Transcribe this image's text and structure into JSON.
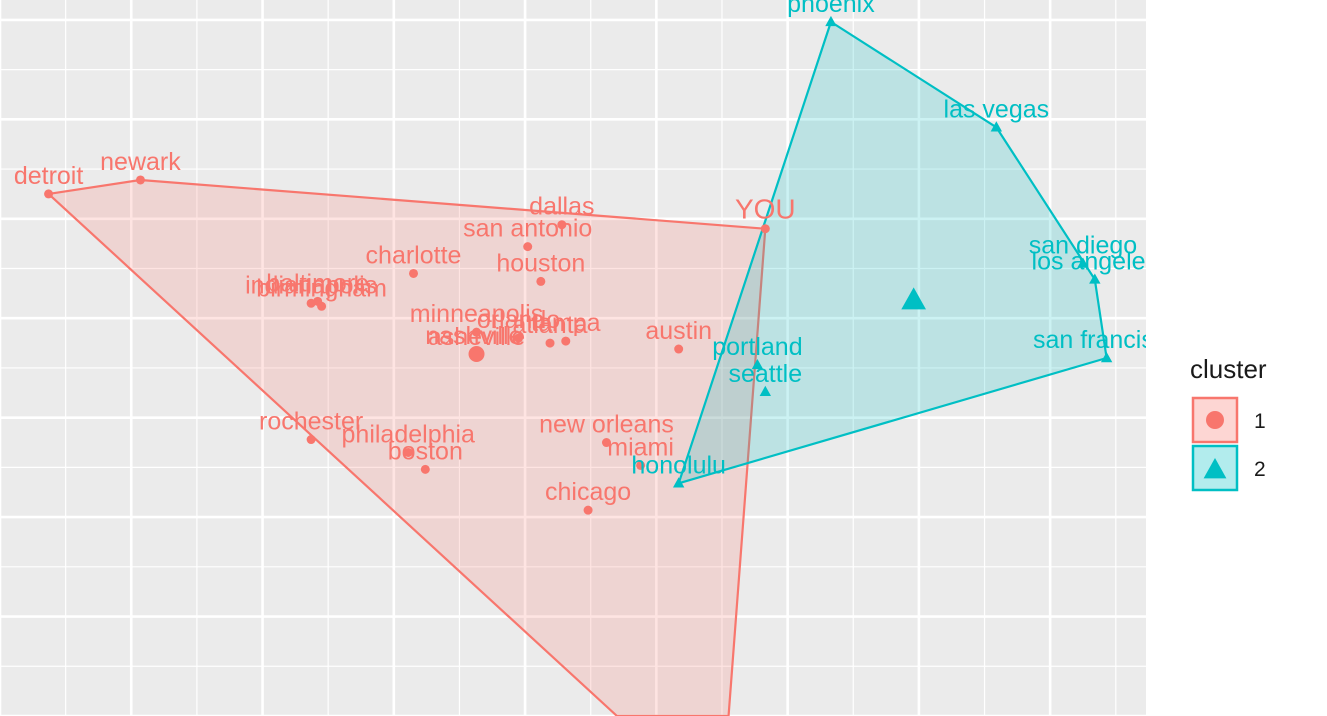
{
  "chart_data": {
    "type": "scatter",
    "title": "",
    "xlabel": "",
    "ylabel": "",
    "grid": true,
    "legend": {
      "title": "cluster",
      "position": "right",
      "entries": [
        {
          "label": "1",
          "shape": "circle",
          "color": "#F8766D"
        },
        {
          "label": "2",
          "shape": "triangle",
          "color": "#00BFC4"
        }
      ]
    },
    "colors": {
      "1": "#F8766D",
      "2": "#00BFC4"
    },
    "points": [
      {
        "label": "detroit",
        "x": 0.37,
        "y": 7.25,
        "cluster": 1
      },
      {
        "label": "newark",
        "x": 1.07,
        "y": 7.39,
        "cluster": 1
      },
      {
        "label": "YOU",
        "x": 5.83,
        "y": 6.9,
        "cluster": 1
      },
      {
        "label": "dallas",
        "x": 4.28,
        "y": 6.94,
        "cluster": 1
      },
      {
        "label": "san antonio",
        "x": 4.02,
        "y": 6.72,
        "cluster": 1
      },
      {
        "label": "houston",
        "x": 4.12,
        "y": 6.37,
        "cluster": 1
      },
      {
        "label": "indianapolis",
        "x": 2.37,
        "y": 6.15,
        "cluster": 1
      },
      {
        "label": "baltimore",
        "x": 2.42,
        "y": 6.17,
        "cluster": 1
      },
      {
        "label": "birmingham",
        "x": 2.45,
        "y": 6.12,
        "cluster": 1
      },
      {
        "label": "charlotte",
        "x": 3.15,
        "y": 6.45,
        "cluster": 1
      },
      {
        "label": "minneapolis",
        "x": 3.63,
        "y": 5.86,
        "cluster": 1
      },
      {
        "label": "orlando",
        "x": 3.95,
        "y": 5.8,
        "cluster": 1
      },
      {
        "label": "atlanta",
        "x": 4.19,
        "y": 5.75,
        "cluster": 1
      },
      {
        "label": "tampa",
        "x": 4.31,
        "y": 5.77,
        "cluster": 1
      },
      {
        "label": "nashville",
        "x": 3.61,
        "y": 5.64,
        "cluster": 1
      },
      {
        "label": "asheville",
        "x": 3.63,
        "y": 5.63,
        "cluster": 1
      },
      {
        "label": "austin",
        "x": 5.17,
        "y": 5.69,
        "cluster": 1
      },
      {
        "label": "rochester",
        "x": 2.37,
        "y": 4.78,
        "cluster": 1
      },
      {
        "label": "philadelphia",
        "x": 3.11,
        "y": 4.65,
        "cluster": 1
      },
      {
        "label": "boston",
        "x": 3.24,
        "y": 4.48,
        "cluster": 1
      },
      {
        "label": "new orleans",
        "x": 4.62,
        "y": 4.75,
        "cluster": 1
      },
      {
        "label": "miami",
        "x": 4.88,
        "y": 4.52,
        "cluster": 1
      },
      {
        "label": "chicago",
        "x": 4.48,
        "y": 4.07,
        "cluster": 1
      },
      {
        "label": "phoenix",
        "x": 6.33,
        "y": 8.98,
        "cluster": 2
      },
      {
        "label": "las vegas",
        "x": 7.59,
        "y": 7.92,
        "cluster": 2
      },
      {
        "label": "san diego",
        "x": 8.25,
        "y": 6.55,
        "cluster": 2
      },
      {
        "label": "los angeles",
        "x": 8.34,
        "y": 6.39,
        "cluster": 2
      },
      {
        "label": "san francisco",
        "x": 8.43,
        "y": 5.6,
        "cluster": 2
      },
      {
        "label": "portland",
        "x": 5.77,
        "y": 5.53,
        "cluster": 2
      },
      {
        "label": "seattle",
        "x": 5.83,
        "y": 5.26,
        "cluster": 2
      },
      {
        "label": "honolulu",
        "x": 5.17,
        "y": 4.34,
        "cluster": 2
      }
    ],
    "centroids": [
      {
        "cluster": 1,
        "x": 3.63,
        "y": 5.64
      },
      {
        "cluster": 2,
        "x": 6.96,
        "y": 6.18
      }
    ],
    "hulls": [
      {
        "cluster": 1,
        "vertices": [
          [
            0.37,
            7.25
          ],
          [
            1.07,
            7.39
          ],
          [
            5.83,
            6.9
          ],
          [
            5.55,
            2.0
          ],
          [
            4.7,
            2.0
          ]
        ]
      },
      {
        "cluster": 2,
        "vertices": [
          [
            6.33,
            8.98
          ],
          [
            7.59,
            7.92
          ],
          [
            8.34,
            6.39
          ],
          [
            8.43,
            5.6
          ],
          [
            5.17,
            4.34
          ]
        ]
      }
    ]
  }
}
